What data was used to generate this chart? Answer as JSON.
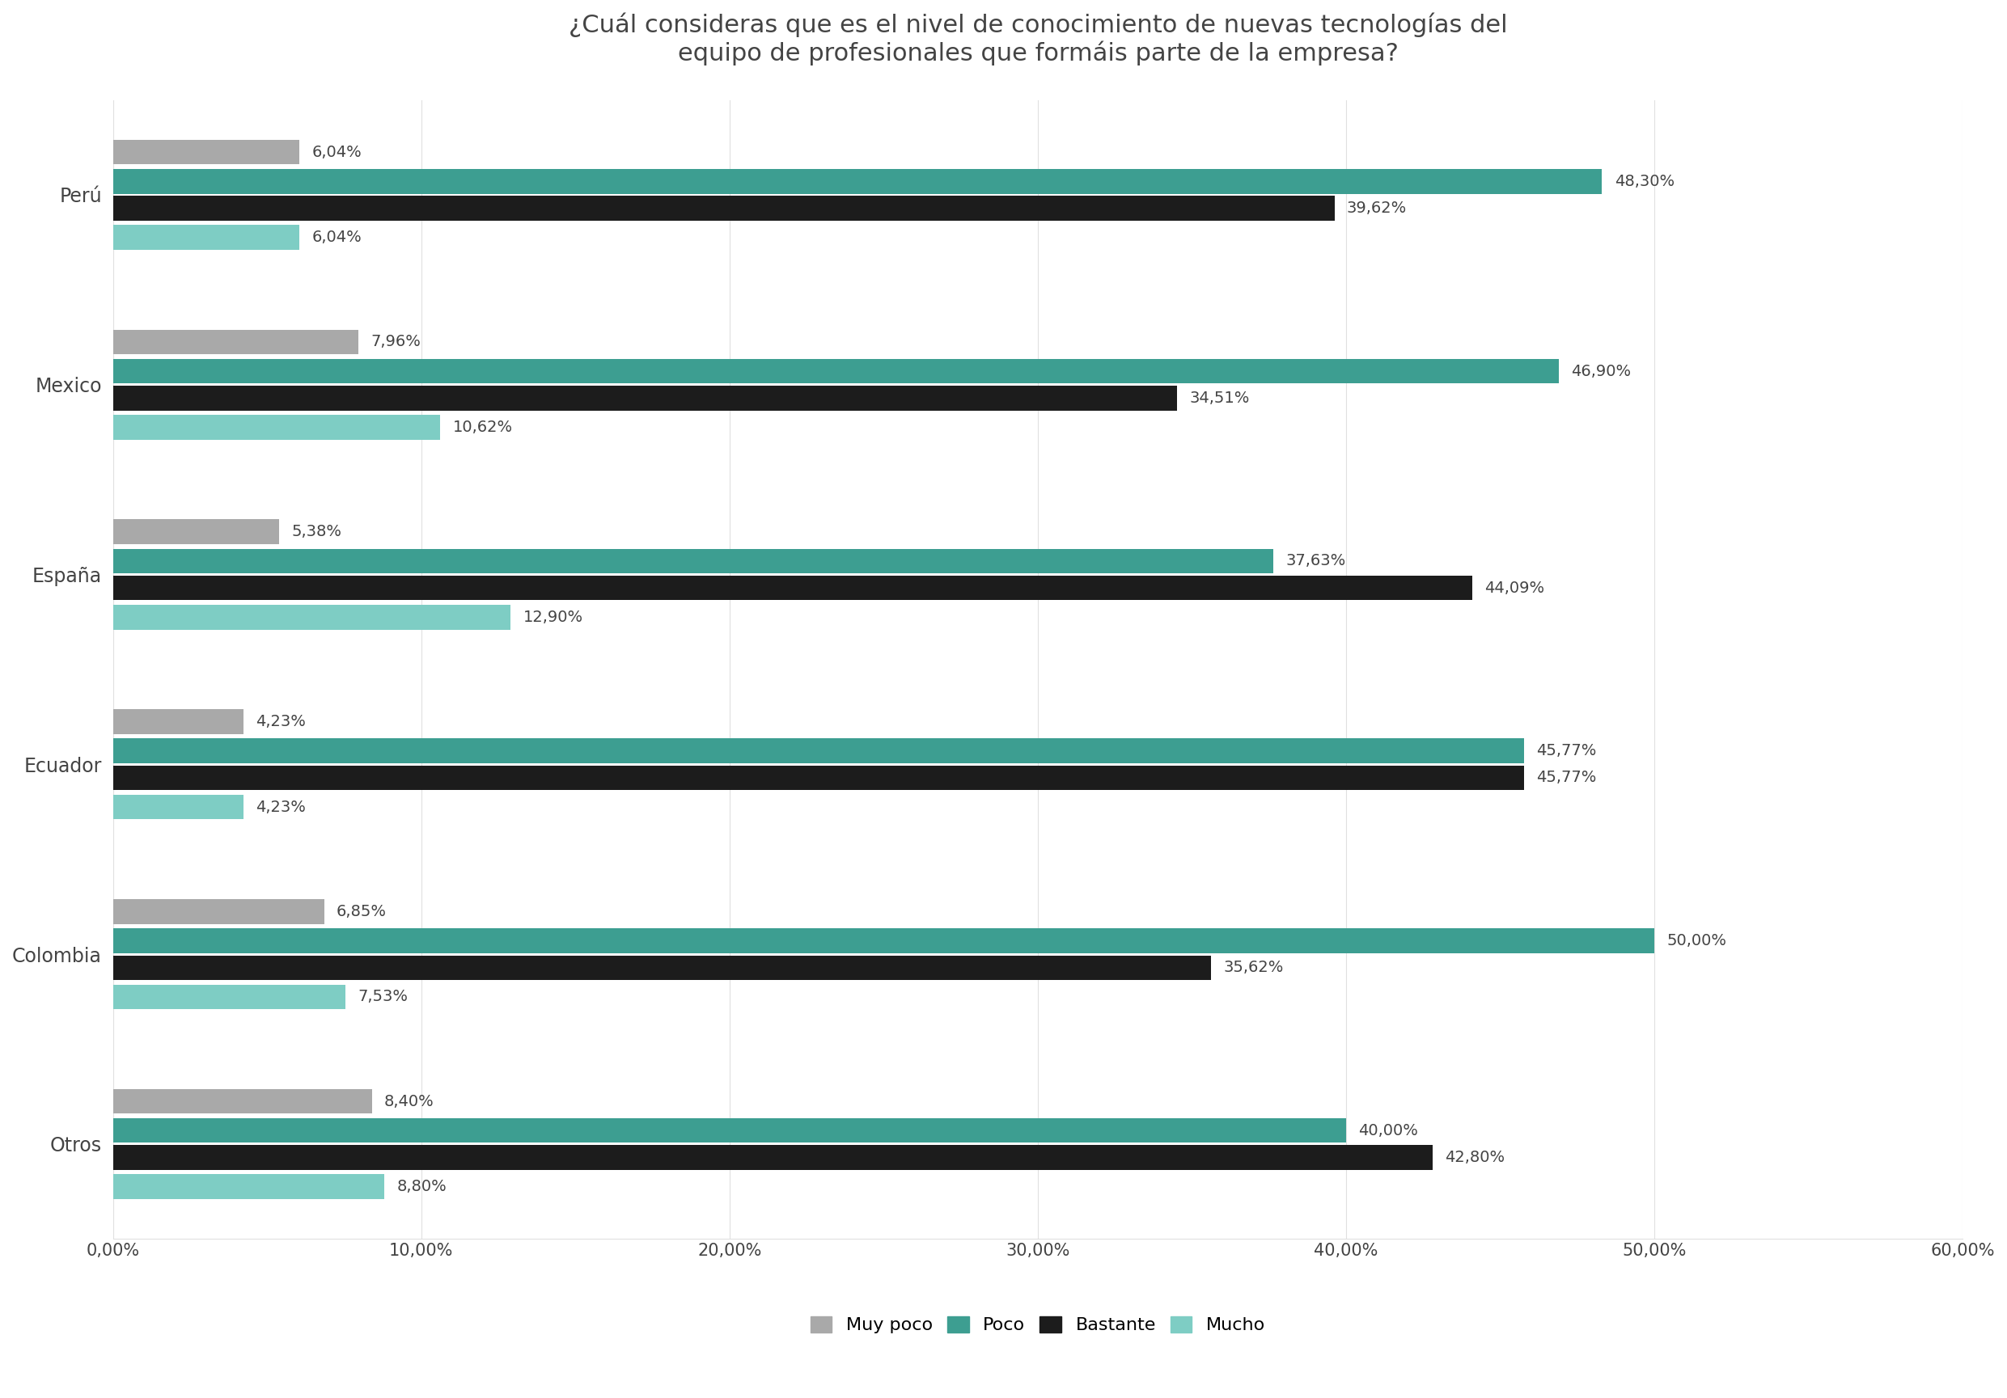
{
  "title": "¿Cuál consideras que es el nivel de conocimiento de nuevas tecnologías del\nequipo de profesionales que formáis parte de la empresa?",
  "categories": [
    "Otros",
    "Colombia",
    "Ecuador",
    "España",
    "Mexico",
    "Perú"
  ],
  "series": {
    "Muy poco": [
      8.4,
      6.85,
      4.23,
      5.38,
      7.96,
      6.04
    ],
    "Poco": [
      40.0,
      50.0,
      45.77,
      37.63,
      46.9,
      48.3
    ],
    "Bastante": [
      42.8,
      35.62,
      45.77,
      44.09,
      34.51,
      39.62
    ],
    "Mucho": [
      8.8,
      7.53,
      4.23,
      12.9,
      10.62,
      6.04
    ]
  },
  "colors": {
    "Muy poco": "#a9a9a9",
    "Poco": "#3d9e91",
    "Bastante": "#1c1c1c",
    "Mucho": "#7ecdc4"
  },
  "xlim": [
    0,
    60
  ],
  "xticks": [
    0,
    10,
    20,
    30,
    40,
    50,
    60
  ],
  "xtick_labels": [
    "0,00%",
    "10,00%",
    "20,00%",
    "30,00%",
    "40,00%",
    "50,00%",
    "60,00%"
  ],
  "bar_height": 0.13,
  "title_fontsize": 22,
  "label_fontsize": 17,
  "tick_fontsize": 15,
  "legend_fontsize": 16,
  "annotation_fontsize": 14,
  "background_color": "#ffffff",
  "text_color": "#444444",
  "grid_color": "#e0e0e0"
}
